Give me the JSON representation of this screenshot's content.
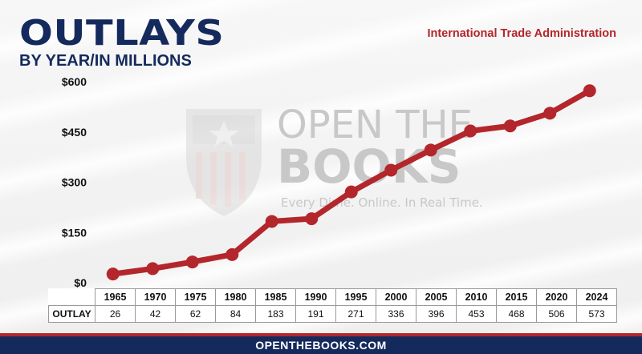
{
  "header": {
    "title": "OUTLAYS",
    "subtitle": "BY YEAR/IN MILLIONS",
    "source": "International Trade Administration"
  },
  "watermark": {
    "line1": "OPEN THE",
    "line2": "BOOKS",
    "tagline": "Every Dime. Online. In Real Time."
  },
  "footer": {
    "url": "OPENTHEBOOKS.COM"
  },
  "colors": {
    "line": "#b3262b",
    "navy": "#142a5c"
  },
  "chart_data": {
    "type": "line",
    "x": [
      "1965",
      "1970",
      "1975",
      "1980",
      "1985",
      "1990",
      "1995",
      "2000",
      "2005",
      "2010",
      "2015",
      "2020",
      "2024"
    ],
    "series": [
      {
        "name": "OUTLAY",
        "values": [
          26,
          42,
          62,
          84,
          183,
          191,
          271,
          336,
          396,
          453,
          468,
          506,
          573
        ]
      }
    ],
    "ylim": [
      0,
      600
    ],
    "yticks": [
      0,
      150,
      300,
      450,
      600
    ],
    "ytick_labels": [
      "$0",
      "$150",
      "$300",
      "$450",
      "$600"
    ],
    "grid": false,
    "legend": "none"
  }
}
